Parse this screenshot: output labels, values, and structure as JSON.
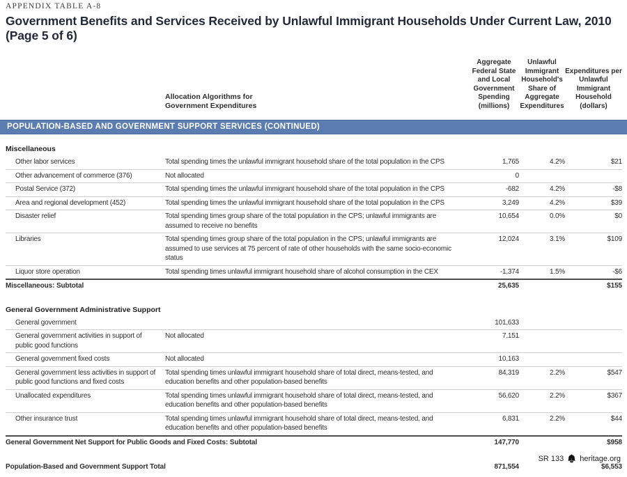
{
  "header": {
    "eyebrow": "APPENDIX TABLE A-8",
    "title": "Government Benefits and Services Received by Unlawful Immigrant Households Under Current Law, 2010 (Page 5 of 6)"
  },
  "columns": {
    "allocation": "Allocation Algorithms for Government Expenditures",
    "aggregate": "Aggregate Federal State and Local Government Spending (millions)",
    "share": "Unlawful Immigrant Household's Share of Aggregate Expenditures",
    "per_household": "Expenditures per Unlawful Immigrant Household (dollars)"
  },
  "section_banner": "POPULATION-BASED AND GOVERNMENT SUPPORT SERVICES (CONTINUED)",
  "groups": [
    {
      "heading": "Miscellaneous",
      "rows": [
        {
          "label": "Other labor services",
          "allocation": "Total spending times the unlawful immigrant household share of the total population in the CPS",
          "aggregate": "1,765",
          "share": "4.2%",
          "per_household": "$21"
        },
        {
          "label": "Other advancement of commerce (376)",
          "allocation": "Not allocated",
          "aggregate": "0",
          "share": "",
          "per_household": ""
        },
        {
          "label": "Postal Service (372)",
          "allocation": "Total spending times the unlawful immigrant household share of the total population in the CPS",
          "aggregate": "-682",
          "share": "4.2%",
          "per_household": "-$8"
        },
        {
          "label": "Area and regional development (452)",
          "allocation": "Total spending times the unlawful immigrant household share of the total population in the CPS",
          "aggregate": "3,249",
          "share": "4.2%",
          "per_household": "$39"
        },
        {
          "label": "Disaster relief",
          "allocation": "Total spending times group share of the total population in the CPS; unlawful immigrants are assumed to receive no benefits",
          "aggregate": "10,654",
          "share": "0.0%",
          "per_household": "$0"
        },
        {
          "label": "Libraries",
          "allocation": "Total spending times group share of the total population in the CPS; unlawful immigrants are assumed to use services at 75 percent of rate of other households with the same socio-economic status",
          "aggregate": "12,024",
          "share": "3.1%",
          "per_household": "$109"
        },
        {
          "label": "Liquor store operation",
          "allocation": "Total spending times unlawful immigrant household share of alcohol consumption in the CEX",
          "aggregate": "-1,374",
          "share": "1.5%",
          "per_household": "-$6"
        }
      ],
      "subtotal": {
        "label": "Miscellaneous: Subtotal",
        "aggregate": "25,635",
        "share": "",
        "per_household": "$155"
      }
    },
    {
      "heading": "General Government Administrative Support",
      "rows": [
        {
          "label": "General government",
          "allocation": "",
          "aggregate": "101,633",
          "share": "",
          "per_household": ""
        },
        {
          "label": "General government activities in support of public good functions",
          "allocation": "Not allocated",
          "aggregate": "7,151",
          "share": "",
          "per_household": ""
        },
        {
          "label": "General government fixed costs",
          "allocation": "Not allocated",
          "aggregate": "10,163",
          "share": "",
          "per_household": ""
        },
        {
          "label": "General government less activities in support of public good functions and fixed costs",
          "allocation": "Total spending times unlawful immigrant household share of total direct, means-tested, and education benefits and other population-based benefits",
          "aggregate": "84,319",
          "share": "2.2%",
          "per_household": "$547"
        },
        {
          "label": "Unallocated expenditures",
          "allocation": "Total spending times unlawful immigrant household share of total direct, means-tested, and education benefits and other population-based benefits",
          "aggregate": "56,620",
          "share": "2.2%",
          "per_household": "$367"
        },
        {
          "label": "Other insurance trust",
          "allocation": "Total spending times unlawful immigrant household share of total direct, means-tested, and education benefits and other population-based benefits",
          "aggregate": "6,831",
          "share": "2.2%",
          "per_household": "$44"
        }
      ],
      "subtotal": {
        "label": "General Government Net Support for Public Goods and Fixed Costs: Subtotal",
        "aggregate": "147,770",
        "share": "",
        "per_household": "$958"
      }
    }
  ],
  "grand_total": {
    "label": "Population-Based and Government Support Total",
    "aggregate": "871,554",
    "share": "",
    "per_household": "$6,553"
  },
  "footer": {
    "report": "SR 133",
    "site": "heritage.org"
  },
  "colors": {
    "banner_bg": "#5b7cb0",
    "banner_text": "#ffffff",
    "subtotal_rule": "#4d4d4d",
    "row_rule": "#cfcfcf"
  }
}
